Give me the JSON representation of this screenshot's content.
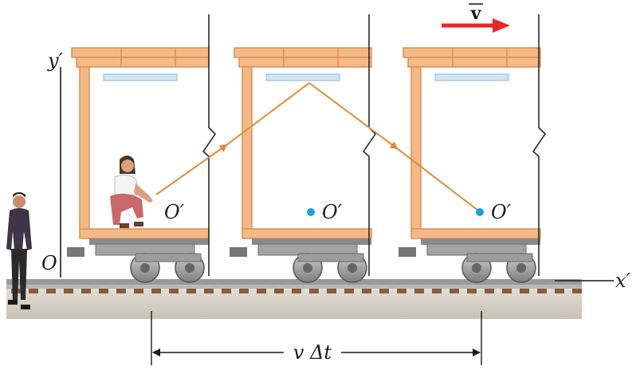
{
  "labels": {
    "velocity_vector": "v",
    "y_prime_axis": "y′",
    "x_prime_axis": "x′",
    "origin_ground": "O",
    "origin_frame_1": "O′",
    "origin_frame_2": "O′",
    "origin_frame_3": "O′",
    "displacement": "v Δt"
  },
  "colors": {
    "car_frame": "#f5b985",
    "car_frame_edge": "#d9905a",
    "light_path": "#e08a36",
    "velocity_arrow": "#e8262b",
    "origin_dot": "#1aa3e0",
    "ceiling_light": "#cfe4f5",
    "rail": "#9a9a9a",
    "ground": "#d8d2c8"
  },
  "figures": {
    "observer_on_ground": "standing-person-icon",
    "observer_in_car": "crouching-person-icon"
  }
}
